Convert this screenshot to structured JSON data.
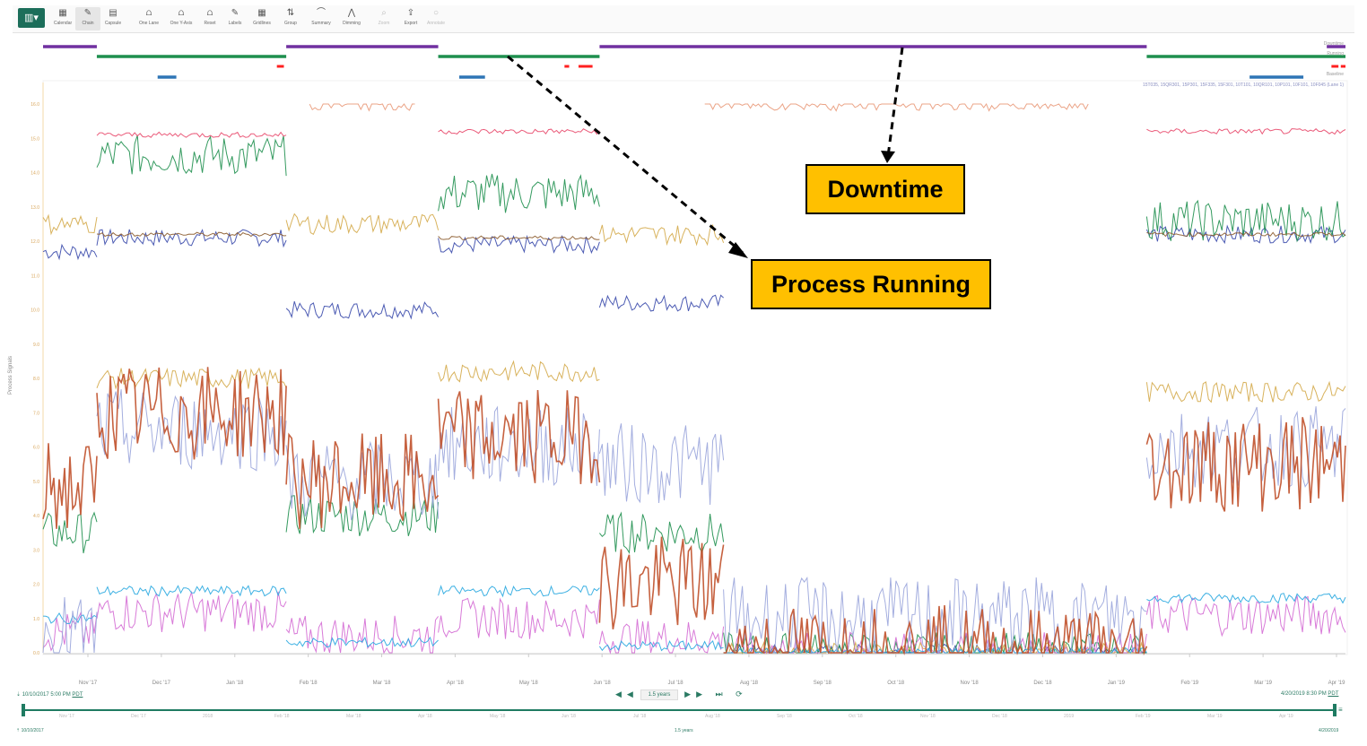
{
  "toolbar": {
    "main": "▥▾",
    "items": [
      {
        "icon": "▦",
        "label": "Calendar",
        "state": "normal"
      },
      {
        "icon": "✎",
        "label": "Chain",
        "state": "active"
      },
      {
        "icon": "▤",
        "label": "Capsule",
        "state": "normal"
      },
      {
        "icon": "⩍",
        "label": "One Lane",
        "state": "normal"
      },
      {
        "icon": "⩍",
        "label": "One Y-Axis",
        "state": "normal"
      },
      {
        "icon": "⩍",
        "label": "Reset",
        "state": "normal"
      },
      {
        "icon": "✎",
        "label": "Labels",
        "state": "normal"
      },
      {
        "icon": "▦",
        "label": "Gridlines",
        "state": "normal"
      },
      {
        "icon": "⇅",
        "label": "Group",
        "state": "normal"
      },
      {
        "icon": "⌒",
        "label": "Summary",
        "state": "normal"
      },
      {
        "icon": "⋀",
        "label": "Dimming",
        "state": "normal"
      },
      {
        "icon": "⌕",
        "label": "Zoom",
        "state": "disabled"
      },
      {
        "icon": "⇪",
        "label": "Export",
        "state": "normal"
      },
      {
        "icon": "○",
        "label": "Annotate",
        "state": "disabled"
      }
    ]
  },
  "capsule_labels": [
    "Downtime",
    "Running",
    "Baseline"
  ],
  "legend_text": "15T035, 15QR301, 15P301, 15F335, 15F301, 10T101, 10QR101, 10P101, 10F101, 10F045 (Lane 1)",
  "y_axis_title": "Process Signals",
  "callouts": {
    "downtime": "Downtime",
    "process_running": "Process Running"
  },
  "navigation": {
    "start_datetime": "10/10/2017 5:00 PM",
    "start_tz": "PDT",
    "end_datetime": "4/20/2019 8:30 PM",
    "end_tz": "PDT",
    "range": "1.5 years",
    "icons": "◀◀ ◀ ▶ ▶▶ ⏭ ⟳"
  },
  "overview": {
    "start": "10/10/2017",
    "mid": "1.5 years",
    "end": "4/20/2019",
    "ticks": [
      "Nov '17",
      "Dec '17",
      "2018",
      "Feb '18",
      "Mar '18",
      "Apr '18",
      "May '18",
      "Jun '18",
      "Jul '18",
      "Aug '18",
      "Sep '18",
      "Oct '18",
      "Nov '18",
      "Dec '18",
      "2019",
      "Feb '19",
      "Mar '19",
      "Apr '19"
    ]
  },
  "chart_data": {
    "type": "line",
    "y_axis": {
      "label": "Process Signals",
      "ylim": [
        0,
        16
      ],
      "ticks": [
        "0.0",
        "1.0",
        "2.0",
        "3.0",
        "4.0",
        "5.0",
        "6.0",
        "7.0",
        "8.0",
        "9.0",
        "10.0",
        "11.0",
        "12.0",
        "13.0",
        "14.0",
        "15.0",
        "16.0"
      ]
    },
    "x_axis": {
      "ticks": [
        "Nov '17",
        "Dec '17",
        "Jan '18",
        "Feb '18",
        "Mar '18",
        "Apr '18",
        "May '18",
        "Jun '18",
        "Jul '18",
        "Aug '18",
        "Sep '18",
        "Oct '18",
        "Nov '18",
        "Dec '18",
        "Jan '19",
        "Feb '19",
        "Mar '19",
        "Apr '19"
      ],
      "start": "2017-10-10",
      "end": "2019-04-20"
    },
    "capsules": {
      "downtime": {
        "color": "#7030a0",
        "periods": [
          [
            "2017-10-10",
            "2017-11-02"
          ],
          [
            "2018-01-22",
            "2018-03-28"
          ],
          [
            "2018-06-05",
            "2019-01-25"
          ],
          [
            "2019-04-12",
            "2019-04-20"
          ]
        ]
      },
      "running": {
        "color": "#1e8f4e",
        "periods": [
          [
            "2017-11-02",
            "2018-01-22"
          ],
          [
            "2018-03-28",
            "2018-06-05"
          ],
          [
            "2019-01-25",
            "2019-04-20"
          ]
        ]
      },
      "alarm": {
        "color": "#ff2020",
        "periods": [
          [
            "2018-01-18",
            "2018-01-21"
          ],
          [
            "2018-05-21",
            "2018-05-23"
          ],
          [
            "2018-05-27",
            "2018-06-02"
          ],
          [
            "2019-04-14",
            "2019-04-17"
          ],
          [
            "2019-04-18",
            "2019-04-20"
          ]
        ]
      },
      "baseline": {
        "color": "#2e75b6",
        "periods": [
          [
            "2017-11-28",
            "2017-12-06"
          ],
          [
            "2018-04-06",
            "2018-04-17"
          ],
          [
            "2019-03-10",
            "2019-04-02"
          ]
        ]
      }
    },
    "series": [
      {
        "name": "15T035",
        "color": "#3949ab",
        "segments": [
          [
            "2017-10-10",
            "2017-11-02",
            11.7
          ],
          [
            "2017-11-02",
            "2018-01-22",
            12.1
          ],
          [
            "2018-01-22",
            "2018-03-28",
            10.0
          ],
          [
            "2018-03-28",
            "2018-06-05",
            11.9
          ],
          [
            "2018-06-05",
            "2018-07-28",
            10.2
          ],
          [
            "2018-07-28",
            "2019-01-25",
            0.0
          ],
          [
            "2019-01-25",
            "2019-04-20",
            12.2
          ]
        ]
      },
      {
        "name": "15QR301",
        "color": "#1e8f4e",
        "segments": [
          [
            "2017-10-10",
            "2017-11-02",
            3.5
          ],
          [
            "2017-11-02",
            "2018-01-22",
            14.5
          ],
          [
            "2018-01-22",
            "2018-03-28",
            4.0
          ],
          [
            "2018-03-28",
            "2018-06-05",
            13.4
          ],
          [
            "2018-06-05",
            "2018-07-28",
            3.5
          ],
          [
            "2018-07-28",
            "2019-01-25",
            0.0
          ],
          [
            "2019-01-25",
            "2019-04-20",
            12.6
          ]
        ]
      },
      {
        "name": "15P301",
        "color": "#d46bd4",
        "segments": [
          [
            "2017-10-10",
            "2017-11-02",
            0.6
          ],
          [
            "2017-11-02",
            "2018-01-22",
            1.2
          ],
          [
            "2018-01-22",
            "2018-03-28",
            0.5
          ],
          [
            "2018-03-28",
            "2018-06-05",
            1.0
          ],
          [
            "2018-06-05",
            "2018-07-28",
            0.4
          ],
          [
            "2018-07-28",
            "2019-01-25",
            0.0
          ],
          [
            "2019-01-25",
            "2019-04-20",
            1.1
          ]
        ]
      },
      {
        "name": "15F335",
        "color": "#d4aa4a",
        "segments": [
          [
            "2017-10-10",
            "2017-11-02",
            12.5
          ],
          [
            "2017-11-02",
            "2018-01-22",
            8.0
          ],
          [
            "2018-01-22",
            "2018-03-28",
            12.5
          ],
          [
            "2018-03-28",
            "2018-06-05",
            8.2
          ],
          [
            "2018-06-05",
            "2018-07-28",
            12.2
          ],
          [
            "2018-07-28",
            "2019-01-25",
            0.0
          ],
          [
            "2019-01-25",
            "2019-04-20",
            7.6
          ]
        ]
      },
      {
        "name": "15F301",
        "color": "#29a8e0",
        "segments": [
          [
            "2017-10-10",
            "2017-11-02",
            1.0
          ],
          [
            "2017-11-02",
            "2018-01-22",
            1.8
          ],
          [
            "2018-01-22",
            "2018-03-28",
            0.3
          ],
          [
            "2018-03-28",
            "2018-06-05",
            1.8
          ],
          [
            "2018-06-05",
            "2018-07-28",
            0.2
          ],
          [
            "2018-07-28",
            "2019-01-25",
            0.0
          ],
          [
            "2019-01-25",
            "2019-04-20",
            1.6
          ]
        ]
      },
      {
        "name": "10T101",
        "color": "#e8486a",
        "segments": [
          [
            "2017-11-02",
            "2018-01-22",
            15.1
          ],
          [
            "2018-03-28",
            "2018-06-05",
            15.2
          ],
          [
            "2019-01-25",
            "2019-04-20",
            15.2
          ]
        ]
      },
      {
        "name": "10QR101",
        "color": "#8b5a2b",
        "segments": [
          [
            "2017-11-02",
            "2018-01-22",
            12.2
          ],
          [
            "2018-03-28",
            "2018-06-05",
            12.1
          ],
          [
            "2019-01-25",
            "2019-04-20",
            12.2
          ]
        ]
      },
      {
        "name": "10P101",
        "color": "#9aa5db",
        "segments": [
          [
            "2017-10-10",
            "2017-11-02",
            0.5
          ],
          [
            "2017-11-02",
            "2018-01-22",
            6.5
          ],
          [
            "2018-01-22",
            "2018-03-28",
            5.0
          ],
          [
            "2018-03-28",
            "2018-06-05",
            6.0
          ],
          [
            "2018-06-05",
            "2018-07-28",
            5.5
          ],
          [
            "2018-07-28",
            "2019-01-25",
            1.0
          ],
          [
            "2019-01-25",
            "2019-04-20",
            6.0
          ]
        ]
      },
      {
        "name": "10F101",
        "color": "#c0502a",
        "segments": [
          [
            "2017-10-10",
            "2017-11-02",
            4.8
          ],
          [
            "2017-11-02",
            "2018-01-22",
            7.0
          ],
          [
            "2018-01-22",
            "2018-03-28",
            5.0
          ],
          [
            "2018-03-28",
            "2018-06-05",
            6.3
          ],
          [
            "2018-06-05",
            "2018-07-28",
            2.0
          ],
          [
            "2018-07-28",
            "2019-01-25",
            0.0
          ],
          [
            "2019-01-25",
            "2019-04-20",
            5.5
          ]
        ]
      },
      {
        "name": "10F045",
        "color": "#e99a7a",
        "segments": [
          [
            "2018-02-01",
            "2018-03-18",
            16.0
          ],
          [
            "2018-07-20",
            "2018-12-31",
            16.0
          ]
        ]
      }
    ]
  }
}
